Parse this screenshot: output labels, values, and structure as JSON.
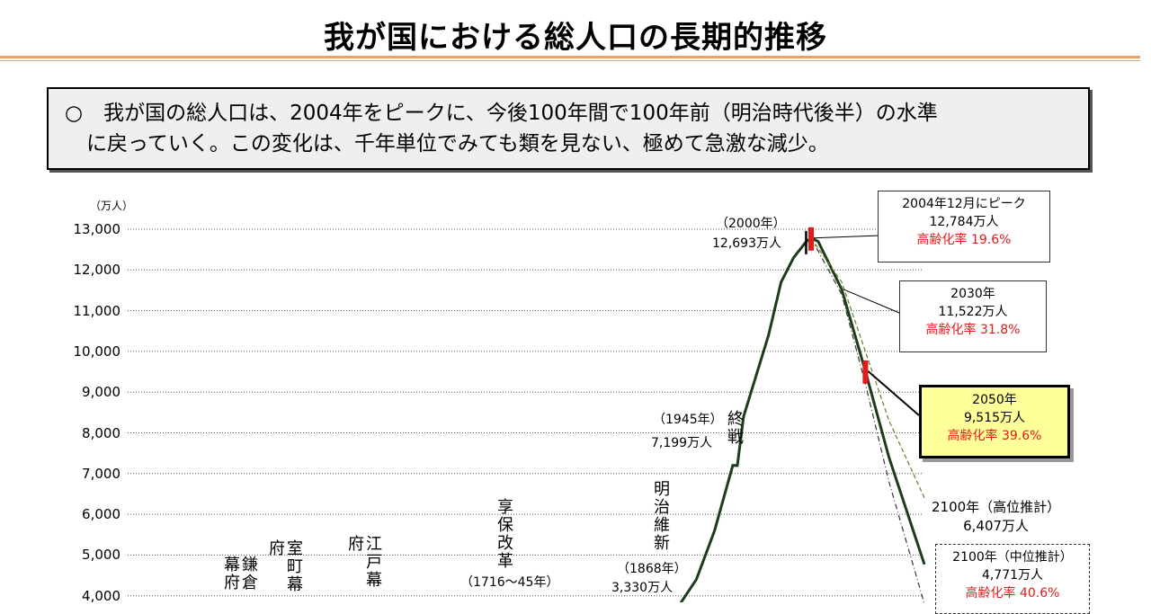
{
  "title": "我が国における総人口の長期的推移",
  "summary": {
    "line1": "○　我が国の総人口は、2004年をピークに、今後100年間で100年前（明治時代後半）の水準",
    "line2": "に戻っていく。この変化は、千年単位でみても類を見ない、極めて急激な減少。"
  },
  "colors": {
    "line": "#1a3d1a",
    "marker": "#e21b1b",
    "highlight": "#ffff99",
    "rule": "#e8a36a"
  },
  "chart_data": {
    "type": "line",
    "unit_label": "（万人）",
    "ylim": [
      4000,
      13000
    ],
    "y_ticks": [
      13000,
      12000,
      11000,
      10000,
      9000,
      8000,
      7000,
      6000,
      5000,
      4000
    ],
    "y_tick_labels": [
      "13,000",
      "12,000",
      "11,000",
      "10,000",
      "9,000",
      "8,000",
      "7,000",
      "6,000",
      "5,000",
      "4,000"
    ],
    "grid": true,
    "series": [
      {
        "values_by_year": [
          [
            1868,
            3330
          ],
          [
            1900,
            4400
          ],
          [
            1920,
            5600
          ],
          [
            1940,
            7200
          ],
          [
            1945,
            7199
          ],
          [
            1950,
            8400
          ],
          [
            1960,
            9400
          ],
          [
            1970,
            10400
          ],
          [
            1980,
            11700
          ],
          [
            1990,
            12300
          ],
          [
            2000,
            12693
          ],
          [
            2004,
            12784
          ],
          [
            2010,
            12700
          ],
          [
            2030,
            11522
          ],
          [
            2050,
            9515
          ],
          [
            2070,
            7400
          ],
          [
            2100,
            4771
          ]
        ]
      },
      {
        "values_by_year": [
          [
            2004,
            12784
          ],
          [
            2030,
            11700
          ],
          [
            2050,
            10000
          ],
          [
            2070,
            8300
          ],
          [
            2100,
            6407
          ]
        ]
      },
      {
        "values_by_year": [
          [
            2004,
            12784
          ],
          [
            2030,
            11400
          ],
          [
            2050,
            9200
          ],
          [
            2070,
            6800
          ],
          [
            2100,
            3800
          ]
        ]
      }
    ],
    "markers": [
      2000,
      2004,
      2050
    ],
    "annotations": {
      "y2000_year": "（2000年）",
      "y2000_value": "12,693万人",
      "y1945_year": "（1945年）",
      "y1945_value": "7,199万人",
      "end_of_war": "終戦",
      "meiji": "明治維新",
      "y1868_year": "（1868年）",
      "y1868_value": "3,330万人",
      "kyoho": "享保改革",
      "kyoho_years": "（1716～45年）",
      "edo": "江戸幕府",
      "muromachi": "室町幕府",
      "kamakura": "鎌倉幕府"
    },
    "callouts": {
      "peak": {
        "line1": "2004年12月にピーク",
        "line2": "12,784万人",
        "aging": "高齢化率 19.6%"
      },
      "y2030": {
        "line1": "2030年",
        "line2": "11,522万人",
        "aging": "高齢化率 31.8%"
      },
      "y2050": {
        "line1": "2050年",
        "line2": "9,515万人",
        "aging": "高齢化率 39.6%"
      },
      "high": {
        "line1": "2100年（高位推計）",
        "line2": "6,407万人"
      },
      "mid": {
        "line1": "2100年（中位推計）",
        "line2": "4,771万人",
        "aging": "高齢化率 40.6%"
      }
    }
  }
}
